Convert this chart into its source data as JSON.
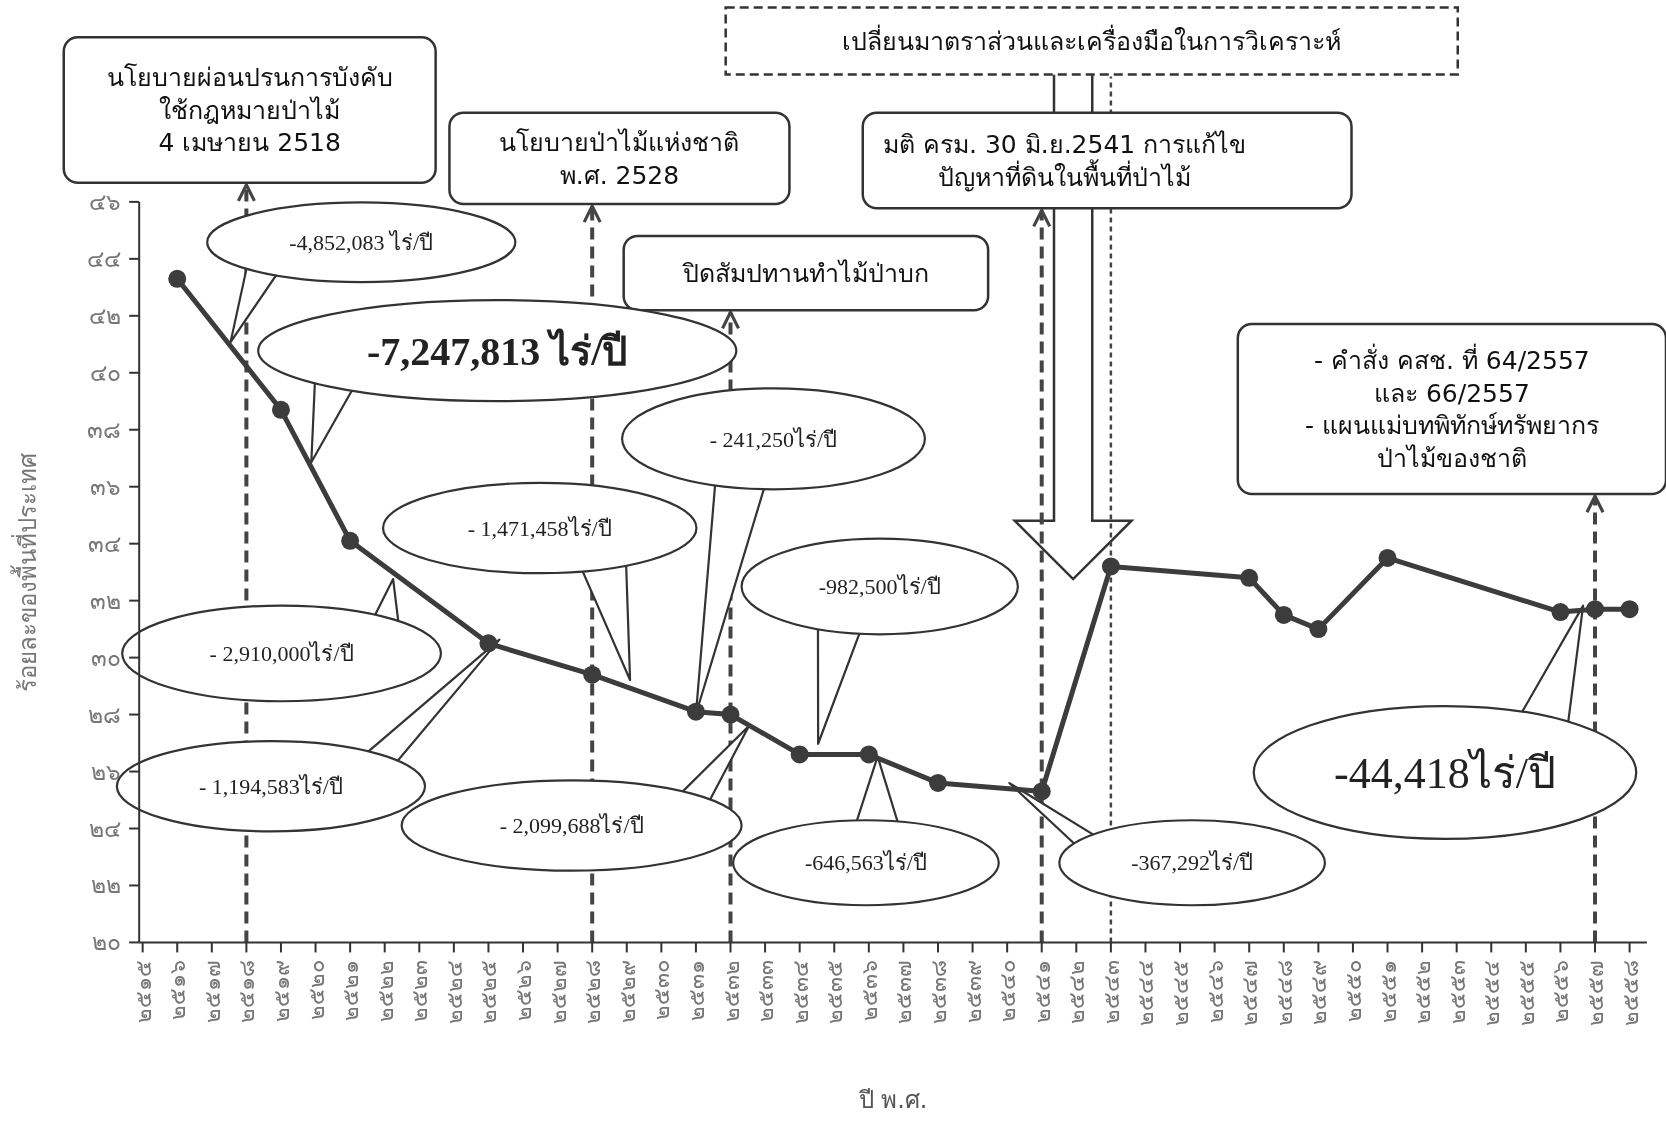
{
  "chart_data": {
    "type": "line",
    "xlabel": "ปี พ.ศ.",
    "ylabel": "ร้อยละของพื้นที่ประเทศ",
    "xlim": [
      2514.9,
      2558.5
    ],
    "ylim": [
      20,
      46
    ],
    "xticks": [
      {
        "value": 2515,
        "label": "๒๕๑๕"
      },
      {
        "value": 2516,
        "label": "๒๕๑๖"
      },
      {
        "value": 2517,
        "label": "๒๕๑๗"
      },
      {
        "value": 2518,
        "label": "๒๕๑๘"
      },
      {
        "value": 2519,
        "label": "๒๕๑๙"
      },
      {
        "value": 2520,
        "label": "๒๕๒๐"
      },
      {
        "value": 2521,
        "label": "๒๕๒๑"
      },
      {
        "value": 2522,
        "label": "๒๕๒๒"
      },
      {
        "value": 2523,
        "label": "๒๕๒๓"
      },
      {
        "value": 2524,
        "label": "๒๕๒๔"
      },
      {
        "value": 2525,
        "label": "๒๕๒๕"
      },
      {
        "value": 2526,
        "label": "๒๕๒๖"
      },
      {
        "value": 2527,
        "label": "๒๕๒๗"
      },
      {
        "value": 2528,
        "label": "๒๕๒๘"
      },
      {
        "value": 2529,
        "label": "๒๕๒๙"
      },
      {
        "value": 2530,
        "label": "๒๕๓๐"
      },
      {
        "value": 2531,
        "label": "๒๕๓๑"
      },
      {
        "value": 2532,
        "label": "๒๕๓๒"
      },
      {
        "value": 2533,
        "label": "๒๕๓๓"
      },
      {
        "value": 2534,
        "label": "๒๕๓๔"
      },
      {
        "value": 2535,
        "label": "๒๕๓๕"
      },
      {
        "value": 2536,
        "label": "๒๕๓๖"
      },
      {
        "value": 2537,
        "label": "๒๕๓๗"
      },
      {
        "value": 2538,
        "label": "๒๕๓๘"
      },
      {
        "value": 2539,
        "label": "๒๕๓๙"
      },
      {
        "value": 2540,
        "label": "๒๕๔๐"
      },
      {
        "value": 2541,
        "label": "๒๕๔๑"
      },
      {
        "value": 2542,
        "label": "๒๕๔๒"
      },
      {
        "value": 2543,
        "label": "๒๕๔๓"
      },
      {
        "value": 2544,
        "label": "๒๕๔๔"
      },
      {
        "value": 2545,
        "label": "๒๕๔๕"
      },
      {
        "value": 2546,
        "label": "๒๕๔๖"
      },
      {
        "value": 2547,
        "label": "๒๕๔๗"
      },
      {
        "value": 2548,
        "label": "๒๕๔๘"
      },
      {
        "value": 2549,
        "label": "๒๕๔๙"
      },
      {
        "value": 2550,
        "label": "๒๕๕๐"
      },
      {
        "value": 2551,
        "label": "๒๕๕๑"
      },
      {
        "value": 2552,
        "label": "๒๕๕๒"
      },
      {
        "value": 2553,
        "label": "๒๕๕๓"
      },
      {
        "value": 2554,
        "label": "๒๕๕๔"
      },
      {
        "value": 2555,
        "label": "๒๕๕๕"
      },
      {
        "value": 2556,
        "label": "๒๕๕๖"
      },
      {
        "value": 2557,
        "label": "๒๕๕๗"
      },
      {
        "value": 2558,
        "label": "๒๕๕๘"
      }
    ],
    "yticks": [
      {
        "value": 20,
        "label": "๒๐"
      },
      {
        "value": 22,
        "label": "๒๒"
      },
      {
        "value": 24,
        "label": "๒๔"
      },
      {
        "value": 26,
        "label": "๒๖"
      },
      {
        "value": 28,
        "label": "๒๘"
      },
      {
        "value": 30,
        "label": "๓๐"
      },
      {
        "value": 32,
        "label": "๓๒"
      },
      {
        "value": 34,
        "label": "๓๔"
      },
      {
        "value": 36,
        "label": "๓๖"
      },
      {
        "value": 38,
        "label": "๓๘"
      },
      {
        "value": 40,
        "label": "๔๐"
      },
      {
        "value": 42,
        "label": "๔๒"
      },
      {
        "value": 44,
        "label": "๔๔"
      },
      {
        "value": 46,
        "label": "๔๖"
      }
    ],
    "grid": false,
    "marker": "circle",
    "line_style": "solid",
    "series": [
      {
        "color": "#3c3c3c",
        "x": [
          2516,
          2519,
          2521,
          2525,
          2528,
          2531,
          2532,
          2534,
          2536,
          2538,
          2541,
          2543,
          2547,
          2548,
          2549,
          2551,
          2556,
          2557,
          2558
        ],
        "values": [
          43.3,
          38.7,
          34.1,
          30.5,
          29.4,
          28.1,
          28.0,
          26.6,
          26.6,
          25.6,
          25.3,
          33.2,
          32.8,
          31.5,
          31.0,
          33.5,
          31.6,
          31.7,
          31.7
        ]
      }
    ],
    "ref_lines": [
      {
        "axis": "x",
        "value": 2518,
        "label": "นโยบายผ่อนปรนการบังคับ\nใช้กฎหมายป่าไม้\n4 เมษายน 2518",
        "line_style": "dashed",
        "color": "#444444"
      },
      {
        "axis": "x",
        "value": 2528,
        "label": "นโยบายป่าไม้แห่งชาติ\nพ.ศ. 2528",
        "line_style": "dashed",
        "color": "#444444"
      },
      {
        "axis": "x",
        "value": 2532,
        "label": "ปิดสัมปทานทำไม้ป่าบก",
        "line_style": "dashed",
        "color": "#444444"
      },
      {
        "axis": "x",
        "value": 2541,
        "label": "มติ ครม. 30 มิ.ย.2541 การแก้ไข\nปัญหาที่ดินในพื้นที่ป่าไม้",
        "line_style": "dashed",
        "color": "#444444"
      },
      {
        "axis": "x",
        "value": 2543,
        "label": "เปลี่ยนมาตราส่วนและเครื่องมือในการวิเคราะห์",
        "line_style": "dotted",
        "color": "#444444"
      },
      {
        "axis": "x",
        "value": 2557,
        "label": "- คำสั่ง คสช. ที่ 64/2557\nและ 66/2557\n- แผนแม่บทพิทักษ์ทรัพยากร\nป่าไม้ของชาติ",
        "line_style": "dashed",
        "color": "#444444"
      }
    ],
    "annotations": [
      "-4,852,083 ไร่/ปี",
      "-7,247,813 ไร่/ปี",
      "- 2,910,000ไร่/ปี",
      "- 1,471,458ไร่/ปี",
      "- 1,194,583ไร่/ปี",
      "- 241,250ไร่/ปี",
      "- 2,099,688ไร่/ปี",
      "-982,500ไร่/ปี",
      "-646,563ไร่/ปี",
      "-367,292ไร่/ปี",
      "-44,418ไร่/ปี"
    ]
  }
}
